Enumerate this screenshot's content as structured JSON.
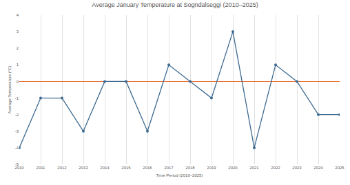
{
  "chart_data": {
    "type": "line",
    "title": "Average January Temperature at Sogndalseggi (2010–2025)",
    "x_label": "Time Period (2010–2025)",
    "y_label": "Average Temperature (°C)",
    "x": [
      2010,
      2011,
      2012,
      2013,
      2014,
      2015,
      2016,
      2017,
      2018,
      2019,
      2020,
      2021,
      2022,
      2023,
      2024,
      2025
    ],
    "values": [
      -4,
      -1,
      -1,
      -3,
      0,
      0,
      -3,
      1,
      0,
      -1,
      3,
      -4,
      1,
      0,
      -2,
      -2
    ],
    "color": "#3d6a91",
    "marker": "circle",
    "xlim": [
      2010,
      2025
    ],
    "xticks": [
      2010,
      2011,
      2012,
      2013,
      2014,
      2015,
      2016,
      2017,
      2018,
      2019,
      2020,
      2021,
      2022,
      2023,
      2024,
      2025
    ],
    "ylim": [
      -5,
      4
    ],
    "yticks": [
      -5,
      -4,
      -3,
      -2,
      -1,
      0,
      1,
      2,
      3,
      4
    ],
    "grid": "x"
  }
}
